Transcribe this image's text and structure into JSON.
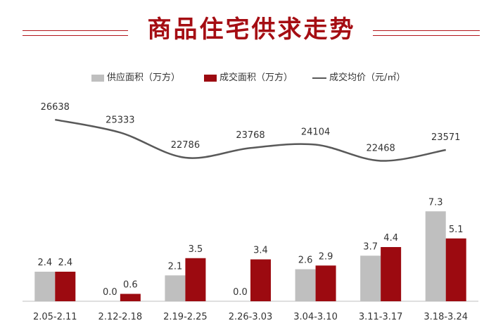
{
  "title": "商品住宅供求走势",
  "legend": {
    "supply": "供应面积（万方）",
    "deal": "成交面积（万方）",
    "price": "成交均价（元/㎡）"
  },
  "colors": {
    "supply": "#bfbfbf",
    "deal": "#9c0a10",
    "price_line": "#595959",
    "title": "#a50d13",
    "axis": "#bfbfbf"
  },
  "chart_data": {
    "type": "bar",
    "categories": [
      "2.05-2.11",
      "2.12-2.18",
      "2.19-2.25",
      "2.26-3.03",
      "3.04-3.10",
      "3.11-3.17",
      "3.18-3.24"
    ],
    "series": [
      {
        "name": "供应面积（万方）",
        "type": "bar",
        "values": [
          2.4,
          0.0,
          2.1,
          0.0,
          2.6,
          3.7,
          7.3
        ],
        "labels": [
          "2.4",
          "0.0",
          "2.1",
          "0.0",
          "2.6",
          "3.7",
          "7.3"
        ]
      },
      {
        "name": "成交面积（万方）",
        "type": "bar",
        "values": [
          2.4,
          0.6,
          3.5,
          3.4,
          2.9,
          4.4,
          5.1
        ],
        "labels": [
          "2.4",
          "0.6",
          "3.5",
          "3.4",
          "2.9",
          "4.4",
          "5.1"
        ]
      },
      {
        "name": "成交均价（元/㎡）",
        "type": "line",
        "axis": "secondary",
        "values": [
          26638,
          25333,
          22786,
          23768,
          24104,
          22468,
          23571
        ],
        "labels": [
          "26638",
          "25333",
          "22786",
          "23768",
          "24104",
          "22468",
          "23571"
        ]
      }
    ],
    "legend_position": "top",
    "grid": false
  }
}
